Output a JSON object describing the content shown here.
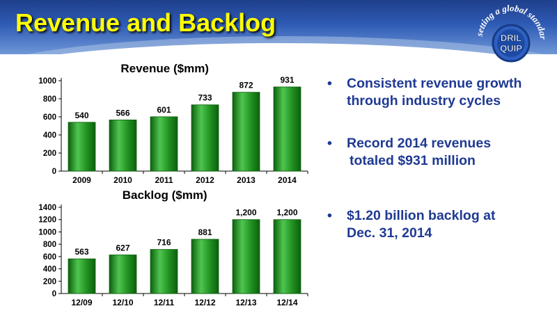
{
  "slide": {
    "title": "Revenue and Backlog",
    "logo": {
      "brand_line1": "DRIL",
      "brand_line2": "QUIP",
      "tagline": "setting a global standard",
      "colors": {
        "ring": "#2f60c0",
        "ring_dark": "#163a86",
        "text": "#ffffff"
      }
    }
  },
  "colors": {
    "title": "#ffff00",
    "bar": "#1f8f1f",
    "bar_light": "#4fc54f",
    "bar_dark": "#0d5f0d",
    "bullet_text": "#1f3a93"
  },
  "chart_data": [
    {
      "type": "bar",
      "title": "Revenue  ($mm)",
      "categories": [
        "2009",
        "2010",
        "2011",
        "2012",
        "2013",
        "2014"
      ],
      "values": [
        540,
        566,
        601,
        733,
        872,
        931
      ],
      "value_labels": [
        "540",
        "566",
        "601",
        "733",
        "872",
        "931"
      ],
      "yticks": [
        "0",
        "200",
        "400",
        "600",
        "800",
        "1000"
      ],
      "ylim": [
        0,
        1000
      ],
      "grid": false,
      "legend": "none"
    },
    {
      "type": "bar",
      "title": "Backlog  ($mm)",
      "categories": [
        "12/09",
        "12/10",
        "12/11",
        "12/12",
        "12/13",
        "12/14"
      ],
      "values": [
        563,
        627,
        716,
        881,
        1200,
        1200
      ],
      "value_labels": [
        "563",
        "627",
        "716",
        "881",
        "1,200",
        "1,200"
      ],
      "yticks": [
        "0",
        "200",
        "400",
        "600",
        "800",
        "1000",
        "1200",
        "1400"
      ],
      "ylim": [
        0,
        1400
      ],
      "grid": false,
      "legend": "none"
    }
  ],
  "bullets": [
    {
      "marker": "•",
      "line1": "Consistent revenue growth",
      "line2": "through industry cycles"
    },
    {
      "marker": "•",
      "line1": "Record 2014 revenues",
      "line2": "totaled $931 million"
    },
    {
      "marker": "•",
      "line1": "$1.20 billion backlog at",
      "line2": "Dec. 31, 2014"
    }
  ]
}
